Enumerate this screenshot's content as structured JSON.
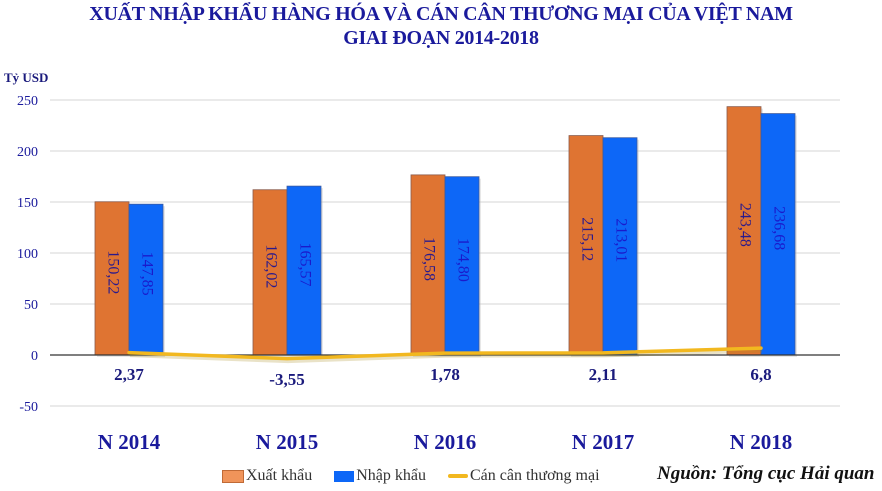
{
  "title": {
    "line1": "XUẤT NHẬP KHẨU  HÀNG HÓA VÀ CÁN CÂN THƯƠNG MẠI CỦA VIỆT NAM",
    "line2": "GIAI ĐOẠN 2014-2018"
  },
  "unit_label": "Tỷ USD",
  "source": "Nguồn: Tổng cục Hải quan",
  "colors": {
    "export": "#DF7432",
    "import": "#0D67F7",
    "balance": "#F2B81F",
    "axis_text": "#1a1a9c",
    "bar_label": "#2a1a9c",
    "grid": "#dddddd"
  },
  "legend": [
    {
      "label": "Xuất khẩu",
      "type": "bar",
      "color_key": "export"
    },
    {
      "label": "Nhập khẩu",
      "type": "bar",
      "color_key": "import"
    },
    {
      "label": "Cán cân thương mại",
      "type": "line",
      "color_key": "balance"
    }
  ],
  "chart_data": {
    "type": "bar",
    "title": "XUẤT NHẬP KHẨU HÀNG HÓA VÀ CÁN CÂN THƯƠNG MẠI CỦA VIỆT NAM GIAI ĐOẠN 2014-2018",
    "xlabel": "",
    "ylabel": "Tỷ USD",
    "ylim": [
      -50,
      250
    ],
    "yticks": [
      250,
      200,
      150,
      100,
      50,
      0,
      -50
    ],
    "grid": true,
    "legend_position": "bottom",
    "categories": [
      "N 2014",
      "N 2015",
      "N 2016",
      "N 2017",
      "N 2018"
    ],
    "series": [
      {
        "name": "Xuất khẩu",
        "type": "bar",
        "values": [
          150.22,
          162.02,
          176.58,
          215.12,
          243.48
        ],
        "labels": [
          "150,22",
          "162,02",
          "176,58",
          "215,12",
          "243,48"
        ]
      },
      {
        "name": "Nhập khẩu",
        "type": "bar",
        "values": [
          147.85,
          165.57,
          174.8,
          213.01,
          236.68
        ],
        "labels": [
          "147,85",
          "165,57",
          "174,80",
          "213,01",
          "236,68"
        ]
      },
      {
        "name": "Cán cân thương mại",
        "type": "line",
        "values": [
          2.37,
          -3.55,
          1.78,
          2.11,
          6.8
        ],
        "labels": [
          "2,37",
          "-3,55",
          "1,78",
          "2,11",
          "6,8"
        ]
      }
    ]
  }
}
